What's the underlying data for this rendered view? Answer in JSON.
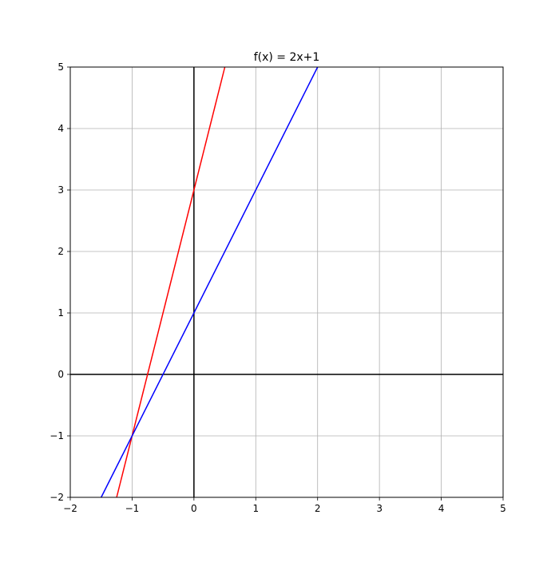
{
  "chart_data": {
    "type": "line",
    "title": "f(x) = 2x+1",
    "xlabel": "",
    "ylabel": "",
    "xlim": [
      -2,
      5
    ],
    "ylim": [
      -2,
      5
    ],
    "x_ticks": [
      -2,
      -1,
      0,
      1,
      2,
      3,
      4,
      5
    ],
    "y_ticks": [
      -2,
      -1,
      0,
      1,
      2,
      3,
      4,
      5
    ],
    "x_tick_labels": [
      "−2",
      "−1",
      "0",
      "1",
      "2",
      "3",
      "4",
      "5"
    ],
    "y_tick_labels": [
      "−2",
      "−1",
      "0",
      "1",
      "2",
      "3",
      "4",
      "5"
    ],
    "grid": true,
    "axes_lines": true,
    "series": [
      {
        "color": "#ff0000",
        "x": [
          -1.25,
          0.5
        ],
        "y": [
          -2,
          5
        ]
      },
      {
        "color": "#0000ff",
        "x": [
          -1.5,
          2
        ],
        "y": [
          -2,
          5
        ]
      }
    ]
  }
}
